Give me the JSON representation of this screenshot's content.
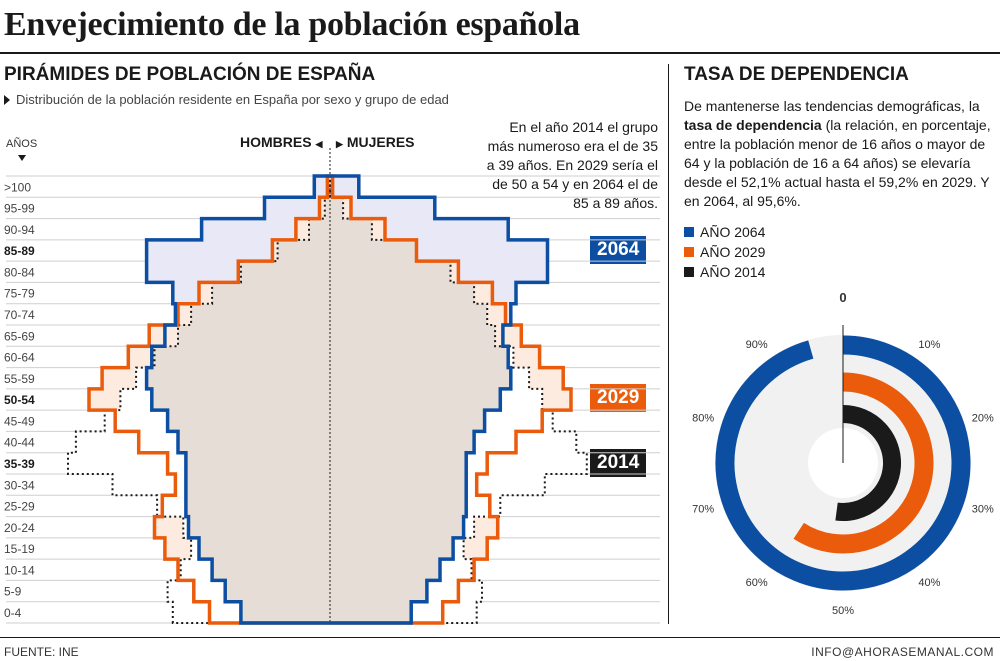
{
  "title": "Envejecimiento de la población española",
  "pyramid": {
    "heading": "PIRÁMIDES DE POBLACIÓN DE ESPAÑA",
    "subtitle": "Distribución de la población residente en España por sexo y grupo de edad",
    "axis_label": "AÑOS",
    "men_label": "HOMBRES",
    "women_label": "MUJERES",
    "annotation": "En el año 2014 el grupo más numeroso era el de 35 a 39 años.  En 2029 sería el de 50 a 54 y en 2064 el de 85 a 89 años."
  },
  "dependency": {
    "heading": "TASA DE DEPENDENCIA",
    "text_before": "De mantenerse las tendencias demográficas, la ",
    "text_bold": "tasa de dependencia",
    "text_after": " (la relación, en porcentaje, entre la población menor de 16 años o mayor de 64 y la población de 16 a 64 años) se elevaría desde el 52,1% actual hasta el 59,2% en 2029. Y en 2064, al 95,6%.",
    "legend": [
      {
        "label": "AÑO 2064",
        "color": "#0b4ea2"
      },
      {
        "label": "AÑO 2029",
        "color": "#ea5b0c"
      },
      {
        "label": "AÑO 2014",
        "color": "#1a1a1a"
      }
    ]
  },
  "footer": {
    "source": "FUENTE: INE",
    "email": "INFO@AHORASEMANAL.COM"
  },
  "chart_data": [
    {
      "type": "population_pyramid",
      "unit": "relative share of population (max group = 1)",
      "categories": [
        "0-4",
        "5-9",
        "10-14",
        "15-19",
        "20-24",
        "25-29",
        "30-34",
        "35-39",
        "40-44",
        "45-49",
        "50-54",
        "55-59",
        "60-64",
        "65-69",
        "70-74",
        "75-79",
        "80-84",
        "85-89",
        "90-94",
        "95-99",
        ">100"
      ],
      "bold_categories": [
        "35-39",
        "50-54",
        "85-89"
      ],
      "series": [
        {
          "name": "2064",
          "color": "#0b4ea2",
          "men": [
            0.34,
            0.4,
            0.45,
            0.5,
            0.54,
            0.55,
            0.55,
            0.55,
            0.58,
            0.62,
            0.68,
            0.7,
            0.68,
            0.63,
            0.59,
            0.6,
            0.7,
            0.7,
            0.49,
            0.25,
            0.06
          ],
          "women": [
            0.31,
            0.37,
            0.42,
            0.47,
            0.51,
            0.52,
            0.52,
            0.52,
            0.55,
            0.59,
            0.65,
            0.69,
            0.68,
            0.66,
            0.69,
            0.71,
            0.83,
            0.83,
            0.68,
            0.4,
            0.11
          ]
        },
        {
          "name": "2029",
          "color": "#ea5b0c",
          "men": [
            0.46,
            0.52,
            0.58,
            0.63,
            0.67,
            0.64,
            0.59,
            0.62,
            0.73,
            0.82,
            0.92,
            0.87,
            0.77,
            0.69,
            0.58,
            0.5,
            0.35,
            0.22,
            0.13,
            0.04,
            0.01
          ],
          "women": [
            0.43,
            0.49,
            0.55,
            0.6,
            0.64,
            0.61,
            0.56,
            0.6,
            0.71,
            0.81,
            0.92,
            0.89,
            0.8,
            0.73,
            0.67,
            0.62,
            0.49,
            0.33,
            0.21,
            0.08,
            0.01
          ]
        },
        {
          "name": "2014",
          "color": "#1a1a1a",
          "men": [
            0.6,
            0.62,
            0.57,
            0.53,
            0.56,
            0.66,
            0.83,
            1.0,
            0.97,
            0.86,
            0.8,
            0.74,
            0.67,
            0.58,
            0.53,
            0.45,
            0.34,
            0.2,
            0.08,
            0.02,
            0.0
          ],
          "women": [
            0.56,
            0.58,
            0.54,
            0.51,
            0.55,
            0.65,
            0.82,
            0.98,
            0.94,
            0.85,
            0.81,
            0.76,
            0.7,
            0.63,
            0.6,
            0.55,
            0.46,
            0.33,
            0.16,
            0.05,
            0.0
          ]
        }
      ]
    },
    {
      "type": "radial_bar",
      "unit": "%",
      "axis": {
        "min": 0,
        "max": 100,
        "ticks": [
          "0",
          "10%",
          "20%",
          "30%",
          "40%",
          "50%",
          "60%",
          "70%",
          "80%",
          "90%"
        ]
      },
      "series": [
        {
          "name": "AÑO 2064",
          "value": 95.6,
          "color": "#0b4ea2"
        },
        {
          "name": "AÑO 2029",
          "value": 59.2,
          "color": "#ea5b0c"
        },
        {
          "name": "AÑO 2014",
          "value": 52.1,
          "color": "#1a1a1a"
        }
      ]
    }
  ]
}
